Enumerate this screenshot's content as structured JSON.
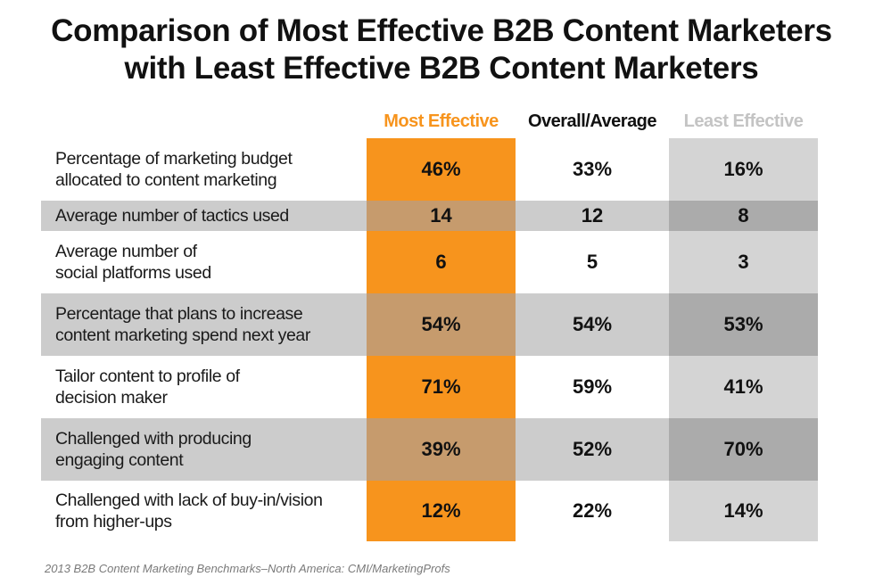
{
  "chart_data": {
    "type": "table",
    "title_lines": [
      "Comparison of Most Effective B2B Content Marketers",
      "with Least Effective B2B Content Marketers"
    ],
    "columns": [
      "Most Effective",
      "Overall/Average",
      "Least Effective"
    ],
    "rows": [
      {
        "label": "Percentage of marketing budget\nallocated to content marketing",
        "values": [
          "46%",
          "33%",
          "16%"
        ]
      },
      {
        "label": "Average number of tactics used",
        "values": [
          "14",
          "12",
          "8"
        ]
      },
      {
        "label": "Average number of\nsocial platforms used",
        "values": [
          "6",
          "5",
          "3"
        ]
      },
      {
        "label": "Percentage that plans to increase\ncontent marketing spend next year",
        "values": [
          "54%",
          "54%",
          "53%"
        ]
      },
      {
        "label": "Tailor content to profile of\ndecision maker",
        "values": [
          "71%",
          "59%",
          "41%"
        ]
      },
      {
        "label": "Challenged with producing\nengaging content",
        "values": [
          "39%",
          "52%",
          "70%"
        ]
      },
      {
        "label": "Challenged with lack of buy-in/vision\nfrom higher-ups",
        "values": [
          "12%",
          "22%",
          "14%"
        ]
      }
    ],
    "source": "2013 B2B Content Marketing Benchmarks–North America: CMI/MarketingProfs"
  },
  "colors": {
    "most_effective": "#f7941d",
    "most_effective_shaded": "#c69b6d",
    "overall": "#111111",
    "least_effective": "#d4d4d4",
    "least_effective_shaded": "#ababab",
    "band": "#cccccc",
    "least_header_text": "#c4c4c4"
  }
}
